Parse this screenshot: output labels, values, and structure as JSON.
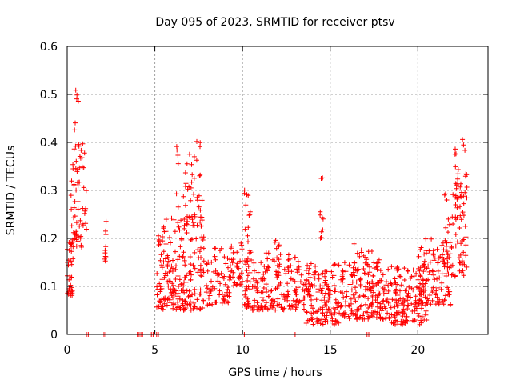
{
  "chart_data": {
    "type": "scatter",
    "title": "Day 095 of 2023, SRMTID for receiver ptsv",
    "xlabel": "GPS time / hours",
    "ylabel": "SRMTID / TECUs",
    "xlim": [
      0,
      24
    ],
    "ylim": [
      0,
      0.6
    ],
    "xticks": [
      0,
      5,
      10,
      15,
      20
    ],
    "yticks": [
      0,
      0.1,
      0.2,
      0.3,
      0.4,
      0.5,
      0.6
    ],
    "grid": true,
    "marker": "+",
    "series_color": "#ff0000",
    "seed": 95,
    "clusters": [
      {
        "x": [
          0.0,
          0.35
        ],
        "y": [
          0.08,
          0.2
        ],
        "n": 30
      },
      {
        "x": [
          0.2,
          1.1
        ],
        "y": [
          0.18,
          0.32
        ],
        "n": 45
      },
      {
        "x": [
          0.3,
          0.7
        ],
        "y": [
          0.3,
          0.52
        ],
        "n": 25
      },
      {
        "x": [
          0.7,
          1.0
        ],
        "y": [
          0.34,
          0.42
        ],
        "n": 8
      },
      {
        "x": [
          2.1,
          2.3
        ],
        "y": [
          0.15,
          0.24
        ],
        "n": 10
      },
      {
        "x": [
          5.1,
          7.8
        ],
        "y": [
          0.05,
          0.25
        ],
        "n": 220
      },
      {
        "x": [
          6.2,
          7.8
        ],
        "y": [
          0.22,
          0.41
        ],
        "n": 45
      },
      {
        "x": [
          7.9,
          9.3
        ],
        "y": [
          0.06,
          0.18
        ],
        "n": 70
      },
      {
        "x": [
          9.3,
          10.0
        ],
        "y": [
          0.1,
          0.2
        ],
        "n": 35
      },
      {
        "x": [
          10.1,
          10.5
        ],
        "y": [
          0.15,
          0.33
        ],
        "n": 18
      },
      {
        "x": [
          10.1,
          13.8
        ],
        "y": [
          0.05,
          0.17
        ],
        "n": 190
      },
      {
        "x": [
          11.8,
          12.2
        ],
        "y": [
          0.12,
          0.2
        ],
        "n": 12
      },
      {
        "x": [
          13.5,
          15.5
        ],
        "y": [
          0.02,
          0.15
        ],
        "n": 130
      },
      {
        "x": [
          14.4,
          14.6
        ],
        "y": [
          0.2,
          0.33
        ],
        "n": 10
      },
      {
        "x": [
          15.5,
          18.5
        ],
        "y": [
          0.03,
          0.15
        ],
        "n": 190
      },
      {
        "x": [
          16.2,
          17.8
        ],
        "y": [
          0.12,
          0.19
        ],
        "n": 25
      },
      {
        "x": [
          18.5,
          20.5
        ],
        "y": [
          0.02,
          0.14
        ],
        "n": 130
      },
      {
        "x": [
          20.0,
          22.0
        ],
        "y": [
          0.06,
          0.2
        ],
        "n": 110
      },
      {
        "x": [
          21.5,
          22.8
        ],
        "y": [
          0.12,
          0.3
        ],
        "n": 70
      },
      {
        "x": [
          22.0,
          22.8
        ],
        "y": [
          0.28,
          0.43
        ],
        "n": 25
      }
    ],
    "zero_points": [
      1.1,
      1.2,
      1.3,
      2.1,
      2.2,
      4.0,
      4.1,
      4.2,
      4.3,
      4.8,
      4.9,
      5.1,
      5.2,
      10.1,
      10.2,
      13.0,
      17.1,
      17.2
    ]
  }
}
